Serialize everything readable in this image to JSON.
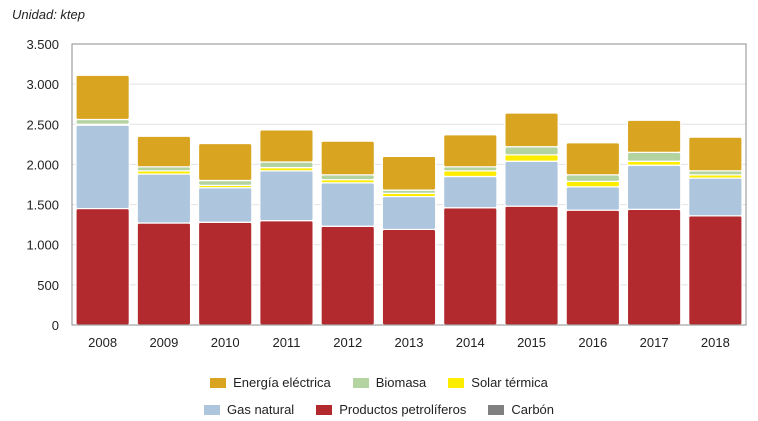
{
  "chart_data": {
    "type": "bar",
    "stacked": true,
    "unit_label": "Unidad: ktep",
    "categories": [
      "2008",
      "2009",
      "2010",
      "2011",
      "2012",
      "2013",
      "2014",
      "2015",
      "2016",
      "2017",
      "2018"
    ],
    "ylim": [
      0,
      3500
    ],
    "yticks": [
      0,
      500,
      1000,
      1500,
      2000,
      2500,
      3000,
      3500
    ],
    "ytick_labels": [
      "0",
      "500",
      "1.000",
      "1.500",
      "2.000",
      "2.500",
      "3.000",
      "3.500"
    ],
    "grid": true,
    "legend_position": "bottom",
    "series": [
      {
        "name": "Productos petrolíferos",
        "color": "#b22a2e",
        "values": [
          1450,
          1270,
          1280,
          1300,
          1230,
          1190,
          1460,
          1480,
          1430,
          1440,
          1360
        ]
      },
      {
        "name": "Gas natural",
        "color": "#adc6de",
        "values": [
          1040,
          610,
          430,
          620,
          540,
          410,
          390,
          560,
          290,
          550,
          470
        ]
      },
      {
        "name": "Carbón",
        "color": "#808080",
        "values": [
          0,
          0,
          0,
          0,
          0,
          0,
          0,
          0,
          0,
          0,
          0
        ]
      },
      {
        "name": "Solar térmica",
        "color": "#ffed00",
        "values": [
          10,
          40,
          30,
          40,
          40,
          40,
          70,
          80,
          70,
          50,
          40
        ]
      },
      {
        "name": "Biomasa",
        "color": "#b3d3a1",
        "values": [
          60,
          50,
          60,
          70,
          60,
          40,
          50,
          100,
          80,
          110,
          50
        ]
      },
      {
        "name": "Energía eléctrica",
        "color": "#d9a520",
        "values": [
          550,
          380,
          460,
          400,
          420,
          420,
          400,
          420,
          400,
          400,
          420
        ]
      }
    ],
    "legend_rows": [
      [
        "Energía eléctrica",
        "Biomasa",
        "Solar térmica"
      ],
      [
        "Gas natural",
        "Productos petrolíferos",
        "Carbón"
      ]
    ]
  }
}
